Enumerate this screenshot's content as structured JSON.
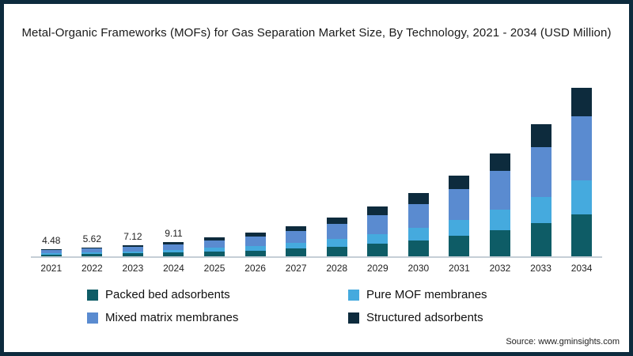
{
  "chart_data": {
    "type": "bar",
    "stacked": true,
    "title": "Metal-Organic Frameworks (MOFs) for Gas Separation Market Size, By Technology, 2021 - 2034 (USD Million)",
    "categories": [
      "2021",
      "2022",
      "2023",
      "2024",
      "2025",
      "2026",
      "2027",
      "2028",
      "2029",
      "2030",
      "2031",
      "2032",
      "2033",
      "2034"
    ],
    "series": [
      {
        "key": "packed-bed-adsorbents",
        "name": "Packed bed adsorbents",
        "color": "#0e5c66",
        "values": [
          1.12,
          1.41,
          1.78,
          2.28,
          2.9,
          3.7,
          4.73,
          6.03,
          7.7,
          9.83,
          12.55,
          16.03,
          20.48,
          26.15
        ]
      },
      {
        "key": "pure-mof-membranes",
        "name": "Pure MOF membranes",
        "color": "#45aade",
        "values": [
          0.9,
          1.12,
          1.42,
          1.82,
          2.32,
          2.96,
          3.78,
          4.82,
          6.16,
          7.86,
          10.04,
          12.82,
          16.38,
          20.92
        ]
      },
      {
        "key": "mixed-matrix-membranes",
        "name": "Mixed matrix membranes",
        "color": "#5a8bd0",
        "values": [
          1.7,
          2.14,
          2.71,
          3.46,
          4.41,
          5.62,
          7.18,
          9.16,
          11.7,
          14.93,
          19.08,
          24.36,
          31.12,
          39.75
        ]
      },
      {
        "key": "structured-adsorbents",
        "name": "Structured adsorbents",
        "color": "#0d2b3d",
        "values": [
          0.76,
          0.95,
          1.21,
          1.55,
          1.97,
          2.52,
          3.21,
          4.09,
          5.24,
          6.68,
          8.53,
          10.89,
          13.92,
          17.78
        ]
      }
    ],
    "totals": [
      4.48,
      5.62,
      7.12,
      9.11,
      11.6,
      14.8,
      18.9,
      24.1,
      30.8,
      39.3,
      50.2,
      64.1,
      81.9,
      104.6
    ],
    "data_labels": [
      "4.48",
      "5.62",
      "7.12",
      "9.11",
      "",
      "",
      "",
      "",
      "",
      "",
      "",
      "",
      "",
      ""
    ],
    "xlabel": "",
    "ylabel": "",
    "ylim": [
      0,
      110
    ],
    "grid": false,
    "legend_position": "bottom"
  },
  "frame_color": "#0d2b3d",
  "source_text": "Source: www.gminsights.com"
}
